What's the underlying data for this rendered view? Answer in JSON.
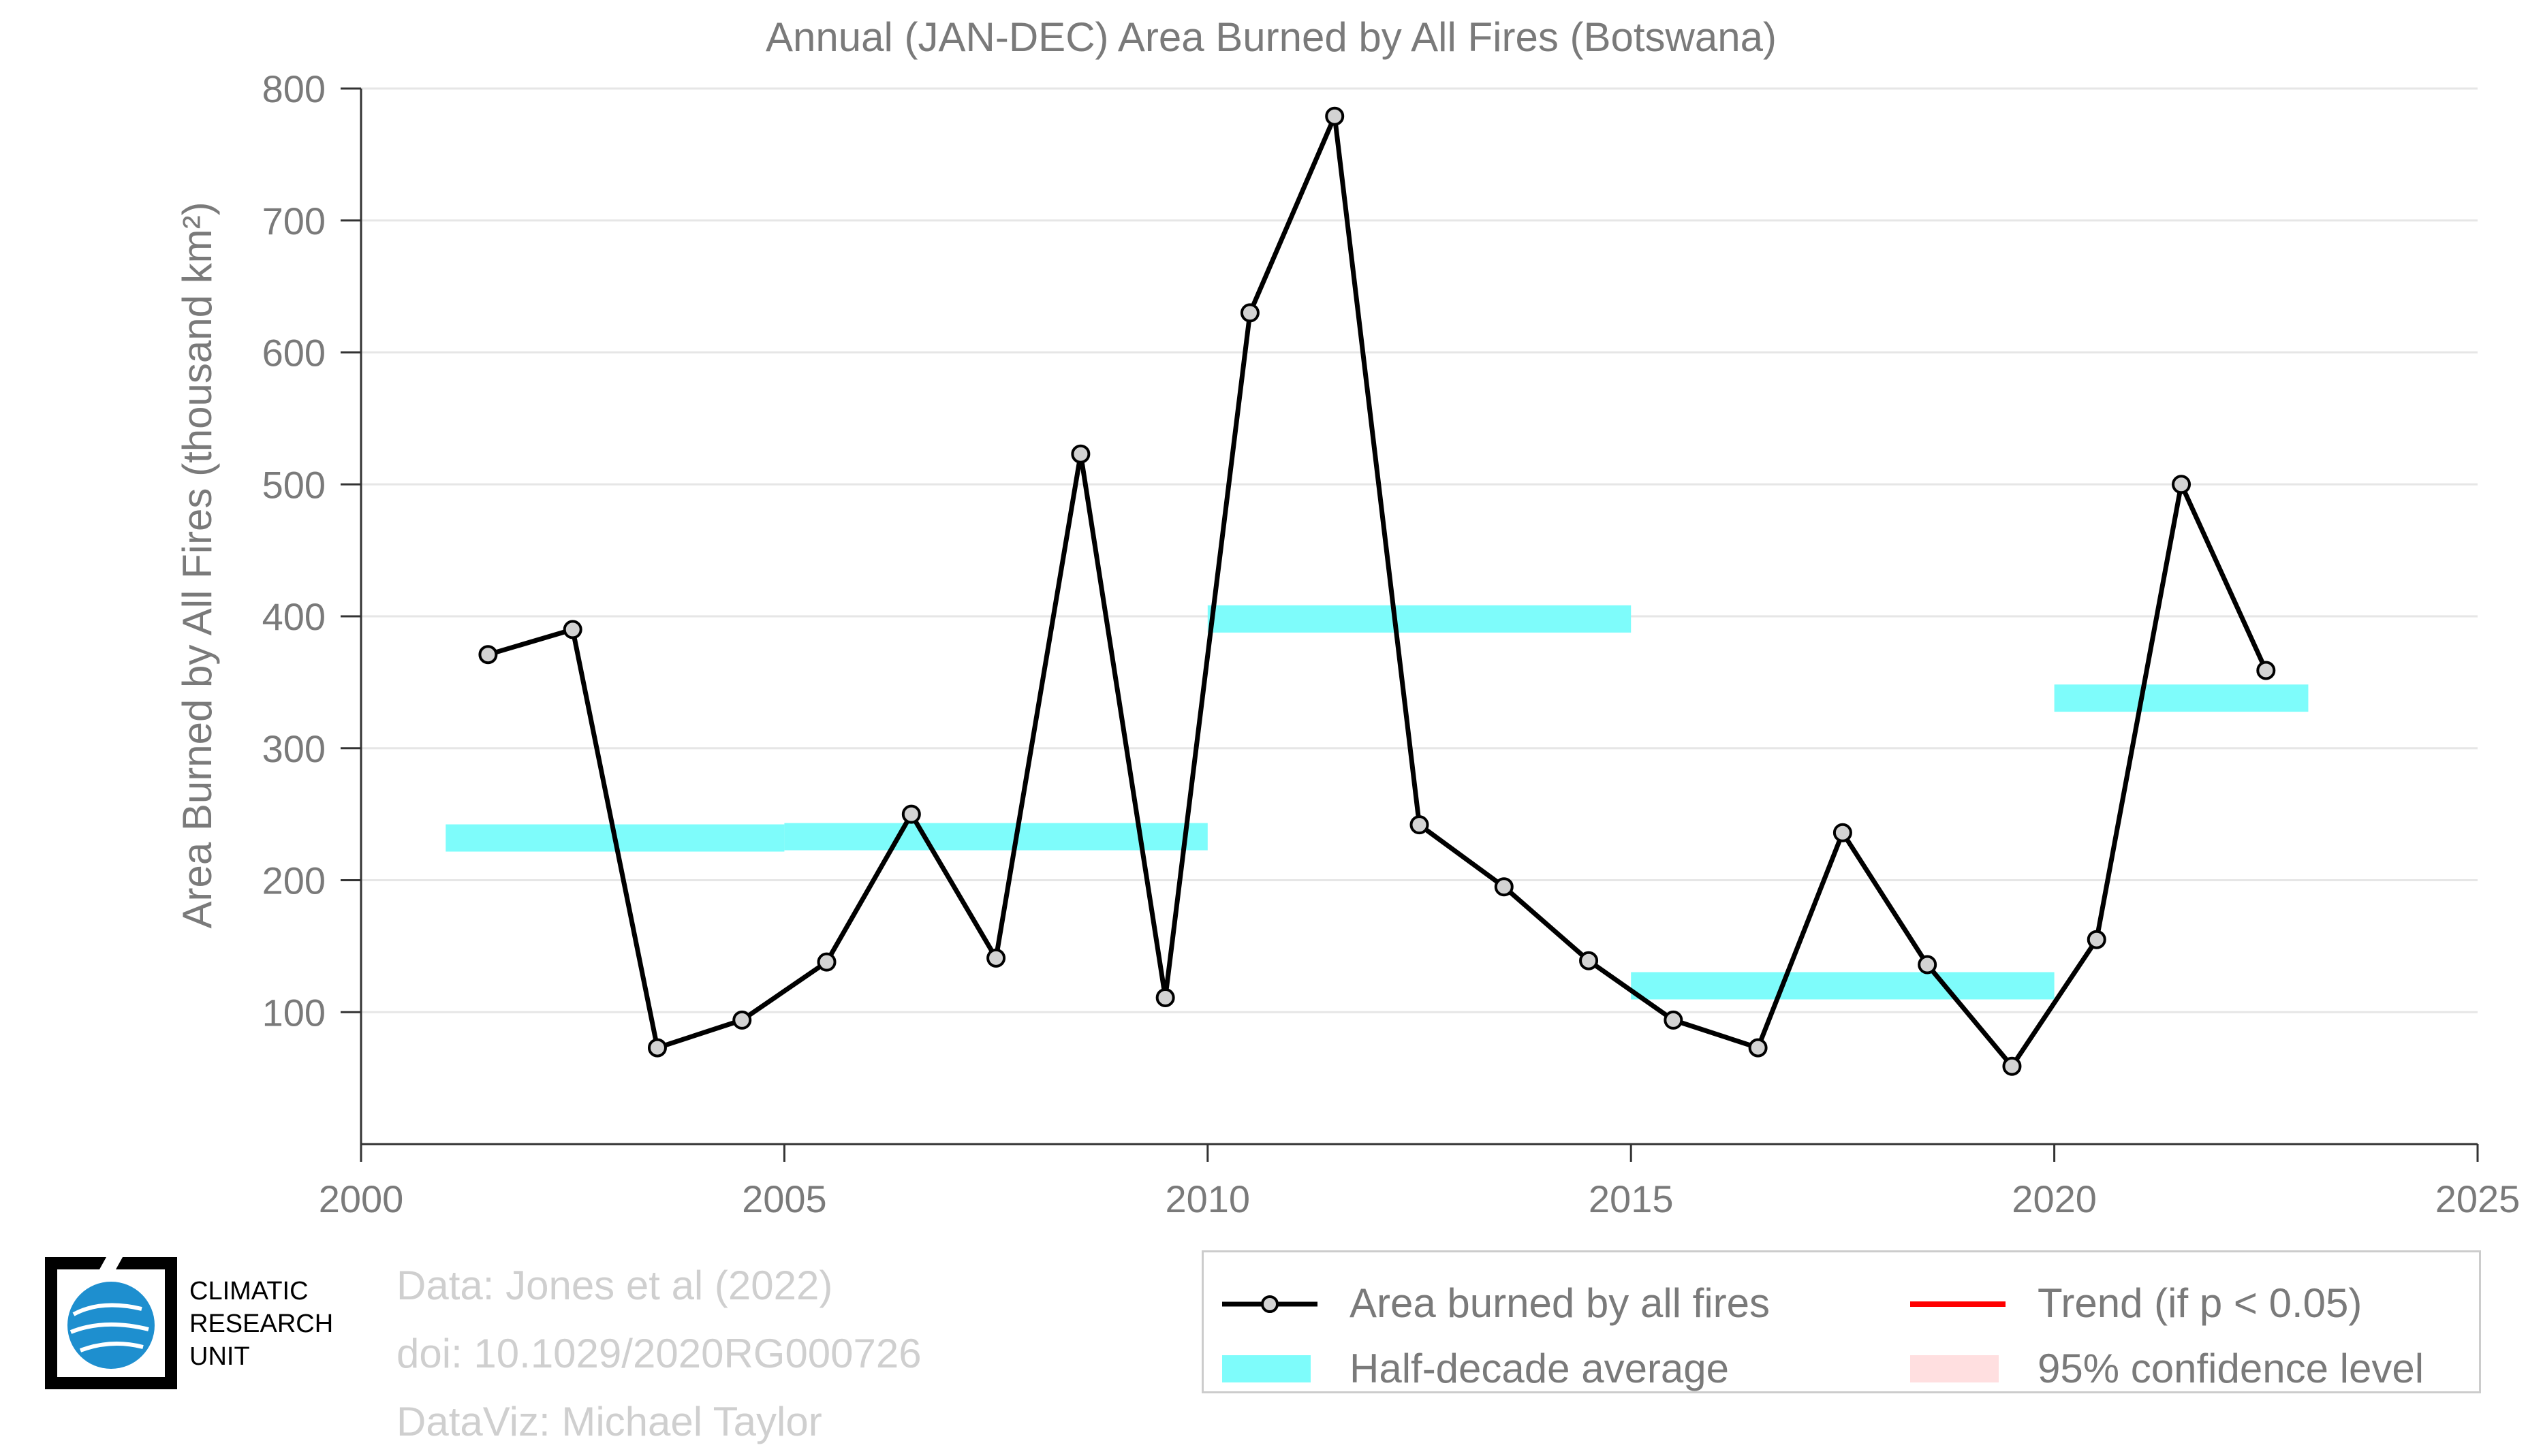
{
  "chart_data": {
    "type": "line",
    "title": "Annual (JAN-DEC) Area Burned by All Fires (Botswana)",
    "ylabel": "Area Burned by All Fires (thousand km²)",
    "xlabel": "",
    "xlim": [
      2000,
      2025
    ],
    "ylim": [
      0,
      800
    ],
    "xticks": [
      2000,
      2005,
      2010,
      2015,
      2020,
      2025
    ],
    "yticks": [
      100,
      200,
      300,
      400,
      500,
      600,
      700,
      800
    ],
    "grid": "horizontal",
    "series": [
      {
        "name": "Area burned by all fires",
        "color": "#000000",
        "x": [
          2001.5,
          2002.5,
          2003.5,
          2004.5,
          2005.5,
          2006.5,
          2007.5,
          2008.5,
          2009.5,
          2010.5,
          2011.5,
          2012.5,
          2013.5,
          2014.5,
          2015.5,
          2016.5,
          2017.5,
          2018.5,
          2019.5,
          2020.5,
          2021.5,
          2022.5
        ],
        "y": [
          371,
          390,
          73,
          94,
          138,
          250,
          141,
          523,
          111,
          630,
          779,
          242,
          195,
          139,
          94,
          73,
          236,
          136,
          59,
          155,
          500,
          359
        ]
      }
    ],
    "half_decade_average": {
      "name": "Half-decade average",
      "color": "#7efcfb",
      "segments": [
        {
          "x0": 2001,
          "x1": 2005,
          "y": 232
        },
        {
          "x0": 2005,
          "x1": 2010,
          "y": 233
        },
        {
          "x0": 2010,
          "x1": 2015,
          "y": 398
        },
        {
          "x0": 2015,
          "x1": 2020,
          "y": 120
        },
        {
          "x0": 2020,
          "x1": 2023,
          "y": 338
        }
      ]
    },
    "legend": {
      "placement": "bottom-right",
      "items": [
        {
          "label": "Area burned by all fires",
          "color": "#000000"
        },
        {
          "label": "Trend (if p < 0.05)",
          "color": "#ff0000"
        },
        {
          "label": "Half-decade average",
          "color": "#7efcfb"
        },
        {
          "label": "95% confidence level",
          "color": "#ffdfe0"
        }
      ]
    }
  },
  "credits": {
    "line1": "Data: Jones et al (2022)",
    "line2": "doi: 10.1029/2020RG000726",
    "line3": "DataViz: Michael Taylor"
  },
  "logo": {
    "line1": "CLIMATIC",
    "line2": "RESEARCH",
    "line3": "UNIT"
  }
}
